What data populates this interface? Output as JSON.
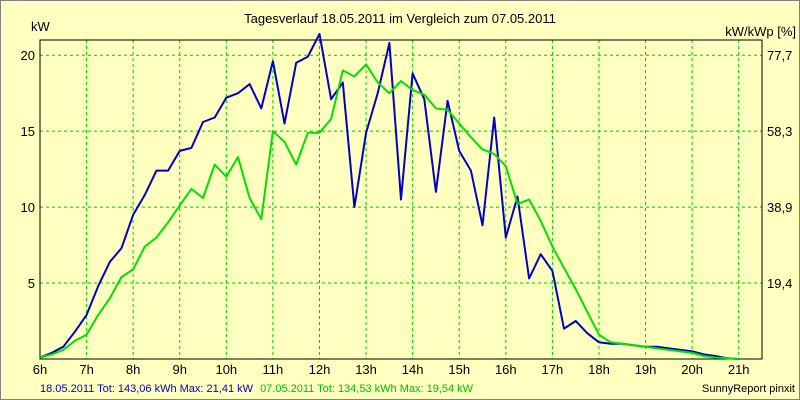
{
  "chart_data": {
    "type": "line",
    "title": "Tagesverlauf 18.05.2011 im Vergleich zum 07.05.2011",
    "ylabel_left": "kW",
    "ylabel_right": "kW/kWp [%]",
    "xlim": [
      6,
      21.5
    ],
    "ylim": [
      0,
      21
    ],
    "x_ticks": [
      {
        "value": 6,
        "label": "6h"
      },
      {
        "value": 7,
        "label": "7h"
      },
      {
        "value": 8,
        "label": "8h"
      },
      {
        "value": 9,
        "label": "9h"
      },
      {
        "value": 10,
        "label": "10h"
      },
      {
        "value": 11,
        "label": "11h"
      },
      {
        "value": 12,
        "label": "12h"
      },
      {
        "value": 13,
        "label": "13h"
      },
      {
        "value": 14,
        "label": "14h"
      },
      {
        "value": 15,
        "label": "15h"
      },
      {
        "value": 16,
        "label": "16h"
      },
      {
        "value": 17,
        "label": "17h"
      },
      {
        "value": 18,
        "label": "18h"
      },
      {
        "value": 19,
        "label": "19h"
      },
      {
        "value": 20,
        "label": "20h"
      },
      {
        "value": 21,
        "label": "21h"
      }
    ],
    "y_ticks_left": [
      {
        "value": 5,
        "label": "5"
      },
      {
        "value": 10,
        "label": "10"
      },
      {
        "value": 15,
        "label": "15"
      },
      {
        "value": 20,
        "label": "20"
      }
    ],
    "y_ticks_right": [
      {
        "value": 5,
        "label": "19,4"
      },
      {
        "value": 10,
        "label": "38,9"
      },
      {
        "value": 15,
        "label": "58,3"
      },
      {
        "value": 20,
        "label": "77,7"
      }
    ],
    "grid": true,
    "series": [
      {
        "name": "18.05.2011",
        "color": "#0000c8",
        "x": [
          6.0,
          6.25,
          6.5,
          6.75,
          7.0,
          7.25,
          7.5,
          7.75,
          8.0,
          8.25,
          8.5,
          8.75,
          9.0,
          9.25,
          9.5,
          9.75,
          10.0,
          10.25,
          10.5,
          10.75,
          11.0,
          11.25,
          11.5,
          11.75,
          12.0,
          12.25,
          12.5,
          12.75,
          13.0,
          13.25,
          13.5,
          13.75,
          14.0,
          14.25,
          14.5,
          14.75,
          15.0,
          15.25,
          15.5,
          15.75,
          16.0,
          16.25,
          16.5,
          16.75,
          17.0,
          17.25,
          17.5,
          17.75,
          18.0,
          18.25,
          18.5,
          18.75,
          19.0,
          19.25,
          19.5,
          19.75,
          20.0,
          20.25,
          20.5,
          20.75,
          21.0
        ],
        "y": [
          0.1,
          0.4,
          0.8,
          1.8,
          2.9,
          4.8,
          6.4,
          7.3,
          9.5,
          10.8,
          12.4,
          12.4,
          13.7,
          13.9,
          15.6,
          15.9,
          17.2,
          17.5,
          18.1,
          16.5,
          19.6,
          15.5,
          19.5,
          19.9,
          21.4,
          17.1,
          18.2,
          10.0,
          14.9,
          17.5,
          20.8,
          10.5,
          18.8,
          17.1,
          11.0,
          17.0,
          13.7,
          12.4,
          8.8,
          15.9,
          8.0,
          10.7,
          5.3,
          6.9,
          5.8,
          2.0,
          2.5,
          1.7,
          1.1,
          1.0,
          1.0,
          0.9,
          0.8,
          0.8,
          0.7,
          0.6,
          0.5,
          0.3,
          0.2,
          0.05,
          0.0
        ]
      },
      {
        "name": "07.05.2011",
        "color": "#00e000",
        "x": [
          6.0,
          6.25,
          6.5,
          6.75,
          7.0,
          7.25,
          7.5,
          7.75,
          8.0,
          8.25,
          8.5,
          8.75,
          9.0,
          9.25,
          9.5,
          9.75,
          10.0,
          10.25,
          10.5,
          10.75,
          11.0,
          11.25,
          11.5,
          11.75,
          12.0,
          12.25,
          12.5,
          12.75,
          13.0,
          13.25,
          13.5,
          13.75,
          14.0,
          14.25,
          14.5,
          14.75,
          15.0,
          15.25,
          15.5,
          15.75,
          16.0,
          16.25,
          16.5,
          16.75,
          17.0,
          17.25,
          17.5,
          17.75,
          18.0,
          18.25,
          18.5,
          18.75,
          19.0,
          19.25,
          19.5,
          19.75,
          20.0,
          20.25,
          20.5,
          20.75,
          21.0
        ],
        "y": [
          0.1,
          0.3,
          0.6,
          1.2,
          1.6,
          2.9,
          4.0,
          5.4,
          5.9,
          7.4,
          8.0,
          9.0,
          10.1,
          11.2,
          10.6,
          12.8,
          12.0,
          13.3,
          10.6,
          9.2,
          15.0,
          14.3,
          12.8,
          14.9,
          14.9,
          15.8,
          19.0,
          18.6,
          19.4,
          18.2,
          17.5,
          18.3,
          17.7,
          17.4,
          16.5,
          16.4,
          15.5,
          14.6,
          13.8,
          13.5,
          12.7,
          10.2,
          10.5,
          9.1,
          7.4,
          6.0,
          4.6,
          3.1,
          1.6,
          1.1,
          1.0,
          0.9,
          0.8,
          0.7,
          0.6,
          0.5,
          0.4,
          0.2,
          0.1,
          0.05,
          0.0
        ]
      }
    ]
  },
  "footer": {
    "series1_summary": "18.05.2011 Tot: 143,06 kWh Max: 21,41 kW",
    "series2_summary": "07.05.2011 Tot: 134,53 kWh Max: 19,54 kW",
    "credit": "SunnyReport pinxit"
  },
  "colors": {
    "background": "#ffffc0",
    "grid": "#00c800",
    "axis": "#000000"
  }
}
